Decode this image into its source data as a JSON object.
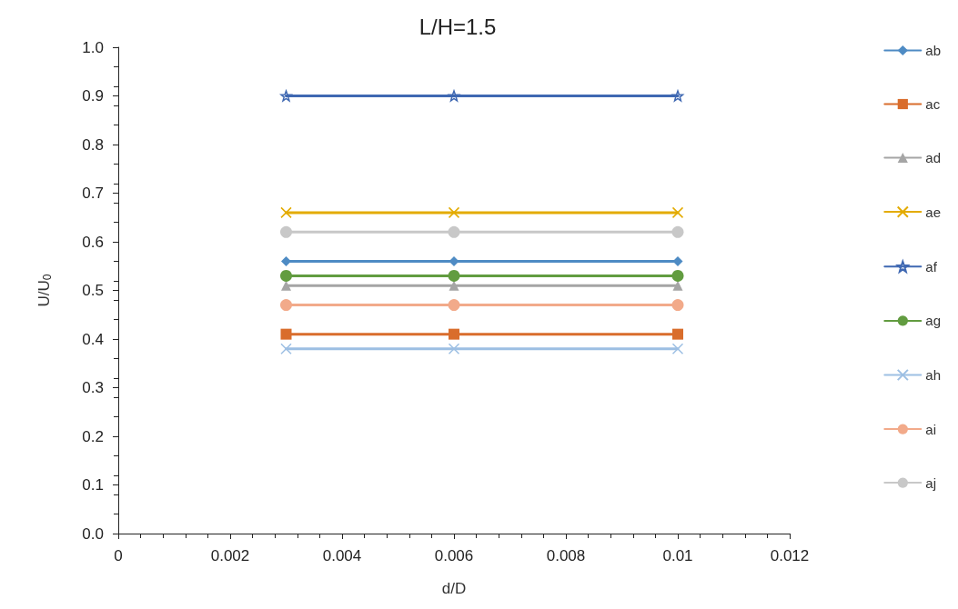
{
  "chart_data": {
    "type": "line",
    "title": "L/H=1.5",
    "xlabel": "d/D",
    "ylabel": "U/U$_{0}$",
    "x": [
      0.003,
      0.006,
      0.01
    ],
    "xlim": [
      0,
      0.012
    ],
    "xticks": [
      0,
      0.002,
      0.004,
      0.006,
      0.008,
      0.01,
      0.012
    ],
    "ylim": [
      0,
      1
    ],
    "yticks": [
      {
        "value": 0,
        "label": "0.0"
      },
      0.1,
      0.2,
      0.3,
      0.4,
      0.5,
      0.6,
      0.7,
      0.8,
      0.9,
      {
        "value": 1,
        "label": "1.0"
      }
    ],
    "grid": false,
    "legend": "right",
    "line_style": "solid",
    "series": [
      {
        "name": "ab",
        "color": "#4e8bc4",
        "marker": "diamond",
        "values": [
          0.56,
          0.56,
          0.56
        ]
      },
      {
        "name": "ac",
        "color": "#d96d2c",
        "marker": "square",
        "values": [
          0.41,
          0.41,
          0.41
        ]
      },
      {
        "name": "ad",
        "color": "#a5a5a5",
        "marker": "triangle",
        "values": [
          0.51,
          0.51,
          0.51
        ]
      },
      {
        "name": "ae",
        "color": "#e3ab00",
        "marker": "cross",
        "values": [
          0.66,
          0.66,
          0.66
        ]
      },
      {
        "name": "af",
        "color": "#3f68b2",
        "marker": "star",
        "values": [
          0.9,
          0.9,
          0.9
        ]
      },
      {
        "name": "ag",
        "color": "#629c40",
        "marker": "circle",
        "values": [
          0.53,
          0.53,
          0.53
        ]
      },
      {
        "name": "ah",
        "color": "#9dbfe3",
        "marker": "cross",
        "values": [
          0.38,
          0.38,
          0.38
        ]
      },
      {
        "name": "ai",
        "color": "#f2aa8a",
        "marker": "circle",
        "values": [
          0.47,
          0.47,
          0.47
        ]
      },
      {
        "name": "aj",
        "color": "#c8c8c8",
        "marker": "circle",
        "values": [
          0.62,
          0.62,
          0.62
        ]
      }
    ]
  }
}
